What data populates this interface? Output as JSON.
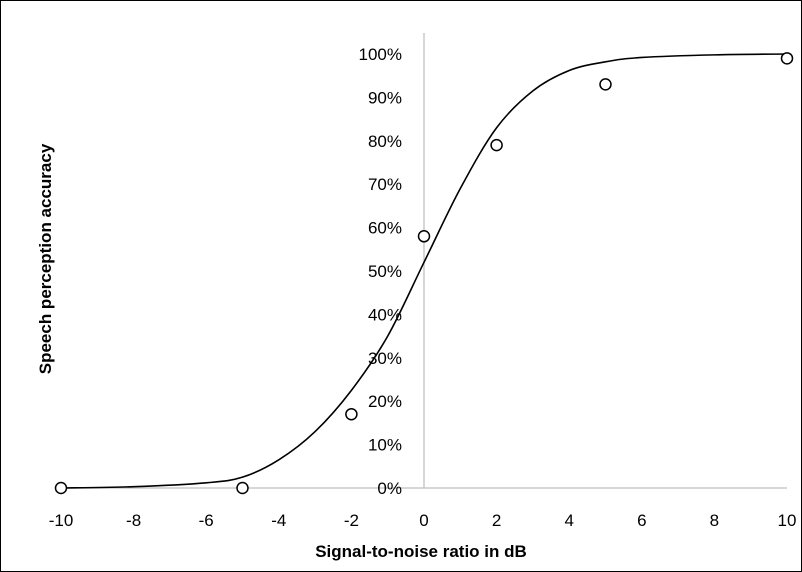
{
  "chart_data": {
    "type": "scatter",
    "xlabel": "Signal-to-noise ratio in dB",
    "ylabel": "Speech perception accuracy",
    "xlim": [
      -10,
      10
    ],
    "ylim": [
      0,
      1
    ],
    "x_ticks": [
      -10,
      -8,
      -6,
      -4,
      -2,
      0,
      2,
      4,
      6,
      8,
      10
    ],
    "x_tick_labels": [
      "-10",
      "-8",
      "-6",
      "-4",
      "-2",
      "0",
      "2",
      "4",
      "6",
      "8",
      "10"
    ],
    "y_ticks": [
      0,
      0.1,
      0.2,
      0.3,
      0.4,
      0.5,
      0.6,
      0.7,
      0.8,
      0.9,
      1.0
    ],
    "y_tick_labels": [
      "0%",
      "10%",
      "20%",
      "30%",
      "40%",
      "50%",
      "60%",
      "70%",
      "80%",
      "90%",
      "100%"
    ],
    "grid": false,
    "series": [
      {
        "kind": "points",
        "marker": "open-circle",
        "x": [
          -10,
          -5,
          -2,
          0,
          2,
          5,
          10
        ],
        "y": [
          0.0,
          0.0,
          0.17,
          0.58,
          0.79,
          0.93,
          0.99
        ]
      },
      {
        "kind": "fitted-curve",
        "x": [
          -10,
          -8,
          -6,
          -5,
          -4,
          -3,
          -2,
          -1,
          0,
          1,
          2,
          3,
          4,
          5,
          6,
          8,
          10
        ],
        "y": [
          0.0,
          0.003,
          0.012,
          0.025,
          0.065,
          0.13,
          0.225,
          0.35,
          0.52,
          0.69,
          0.83,
          0.915,
          0.962,
          0.982,
          0.992,
          0.998,
          1.0
        ]
      }
    ],
    "colors": {
      "line": "#000000",
      "marker_fill": "#ffffff",
      "marker_edge": "#000000",
      "axis": "#bfbfbf"
    }
  }
}
